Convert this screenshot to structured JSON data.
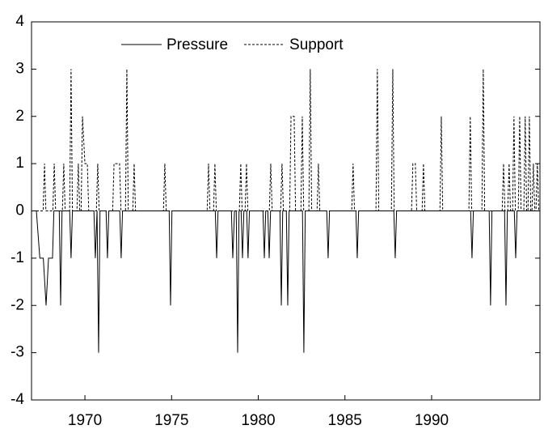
{
  "chart_data": {
    "type": "line",
    "xlim": [
      1966.92,
      1996.25
    ],
    "xticks": [
      1970,
      1975,
      1980,
      1985,
      1990
    ],
    "ylim": [
      -4,
      4
    ],
    "yticks": [
      -4,
      -3,
      -2,
      -1,
      0,
      1,
      2,
      3,
      4
    ],
    "grid": false,
    "legend": "top",
    "series": [
      {
        "name": "Pressure",
        "color": "#000000",
        "style": "solid",
        "x": [
          1967.2,
          1967.4,
          1967.6,
          1967.76,
          1967.9,
          1968.13,
          1968.21,
          1968.52,
          1968.6,
          1968.68,
          1969.12,
          1969.2,
          1969.28,
          1970.52,
          1970.6,
          1970.7,
          1970.79,
          1970.87,
          1971.22,
          1971.3,
          1971.38,
          1972.01,
          1972.09,
          1972.17,
          1974.86,
          1974.94,
          1975.02,
          1977.52,
          1977.6,
          1977.68,
          1978.45,
          1978.53,
          1978.63,
          1978.73,
          1978.81,
          1978.89,
          1979.01,
          1979.09,
          1979.17,
          1979.33,
          1979.41,
          1979.49,
          1980.27,
          1980.35,
          1980.43,
          1980.55,
          1980.63,
          1980.71,
          1981.25,
          1981.33,
          1981.41,
          1981.62,
          1981.7,
          1981.78,
          1982.55,
          1982.63,
          1982.71,
          1983.95,
          1984.03,
          1984.11,
          1985.63,
          1985.71,
          1985.79,
          1987.82,
          1987.9,
          1987.98,
          1992.25,
          1992.33,
          1992.41,
          1993.32,
          1993.4,
          1993.48,
          1994.21,
          1994.29,
          1994.37,
          1994.77,
          1994.85,
          1994.93,
          1996.2
        ],
        "values": [
          0,
          -1,
          -1,
          -2,
          -1,
          -1,
          0,
          0,
          -2,
          0,
          0,
          -1,
          0,
          0,
          -1,
          0,
          -3,
          0,
          0,
          -1,
          0,
          0,
          -1,
          0,
          0,
          -2,
          0,
          0,
          -1,
          0,
          0,
          -1,
          0,
          0,
          -3,
          0,
          0,
          -1,
          0,
          0,
          -1,
          0,
          0,
          -1,
          0,
          0,
          -1,
          0,
          0,
          -2,
          0,
          0,
          -2,
          0,
          0,
          -3,
          0,
          0,
          -1,
          0,
          0,
          -1,
          0,
          0,
          -1,
          0,
          0,
          -1,
          0,
          0,
          -2,
          0,
          0,
          -2,
          0,
          0,
          -1,
          0,
          0
        ]
      },
      {
        "name": "Support",
        "color": "#000000",
        "style": "dashed",
        "x": [
          1967.2,
          1967.59,
          1967.67,
          1967.75,
          1968.15,
          1968.23,
          1968.31,
          1968.7,
          1968.78,
          1968.86,
          1969.12,
          1969.2,
          1969.28,
          1969.54,
          1969.62,
          1969.7,
          1969.78,
          1969.86,
          1970.0,
          1970.14,
          1970.22,
          1970.66,
          1970.74,
          1970.82,
          1971.6,
          1971.68,
          1972.0,
          1972.08,
          1972.34,
          1972.42,
          1972.5,
          1972.76,
          1972.84,
          1972.92,
          1974.53,
          1974.61,
          1974.69,
          1977.05,
          1977.13,
          1977.21,
          1977.42,
          1977.5,
          1977.58,
          1978.91,
          1978.99,
          1979.07,
          1979.24,
          1979.32,
          1979.4,
          1980.64,
          1980.72,
          1980.8,
          1981.29,
          1981.37,
          1981.45,
          1981.81,
          1981.89,
          1982.07,
          1982.15,
          1982.46,
          1982.54,
          1982.62,
          1982.92,
          1983.0,
          1983.08,
          1983.39,
          1983.47,
          1983.55,
          1985.39,
          1985.47,
          1985.55,
          1986.79,
          1986.87,
          1986.95,
          1987.68,
          1987.76,
          1987.84,
          1988.84,
          1988.92,
          1989.06,
          1989.14,
          1989.45,
          1989.53,
          1989.61,
          1990.48,
          1990.56,
          1990.64,
          1992.15,
          1992.23,
          1992.31,
          1992.9,
          1992.98,
          1993.06,
          1994.07,
          1994.15,
          1994.23,
          1994.39,
          1994.47,
          1994.55,
          1994.67,
          1994.75,
          1994.83,
          1995.0,
          1995.08,
          1995.16,
          1995.32,
          1995.4,
          1995.48,
          1995.56,
          1995.64,
          1995.72,
          1995.79,
          1995.87,
          1995.95,
          1996.02,
          1996.1,
          1996.18
        ],
        "values": [
          0,
          0,
          1,
          0,
          0,
          1,
          0,
          0,
          1,
          0,
          0,
          3,
          0,
          0,
          1,
          0,
          0,
          2,
          1,
          1,
          0,
          0,
          1,
          0,
          0,
          1,
          1,
          0,
          0,
          3,
          0,
          0,
          1,
          0,
          0,
          1,
          0,
          0,
          1,
          0,
          0,
          1,
          0,
          0,
          1,
          0,
          0,
          1,
          0,
          0,
          1,
          0,
          0,
          1,
          0,
          0,
          2,
          2,
          0,
          0,
          2,
          0,
          0,
          3,
          0,
          0,
          1,
          0,
          0,
          1,
          0,
          0,
          3,
          0,
          0,
          3,
          0,
          0,
          1,
          1,
          0,
          0,
          1,
          0,
          0,
          2,
          0,
          0,
          2,
          0,
          0,
          3,
          0,
          0,
          1,
          0,
          0,
          1,
          0,
          0,
          2,
          0,
          0,
          2,
          0,
          0,
          2,
          0,
          0,
          2,
          0,
          0,
          1,
          0,
          0,
          1,
          0
        ]
      }
    ]
  }
}
